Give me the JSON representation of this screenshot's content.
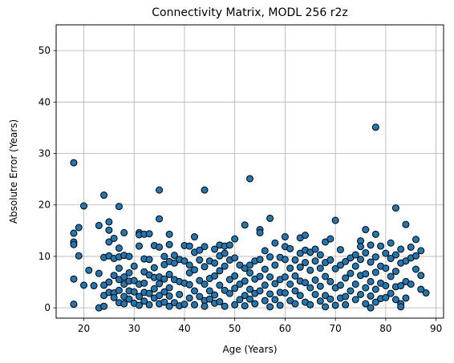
{
  "chart_data": {
    "type": "scatter",
    "title": "Connectivity Matrix, MODL 256 r2z",
    "xlabel": "Age (Years)",
    "ylabel": "Absolute Error (Years)",
    "xlim": [
      14.5,
      91.5
    ],
    "ylim": [
      -2,
      55
    ],
    "xticks": [
      20,
      30,
      40,
      50,
      60,
      70,
      80,
      90
    ],
    "yticks": [
      0,
      10,
      20,
      30,
      40,
      50
    ],
    "grid": true,
    "marker_color": "#1f77b4",
    "marker_edge_color": "#000000",
    "points": [
      [
        18,
        28.2
      ],
      [
        18,
        14.5
      ],
      [
        18,
        12.8
      ],
      [
        18,
        12.3
      ],
      [
        18,
        5.6
      ],
      [
        18,
        0.7
      ],
      [
        19,
        15.6
      ],
      [
        19,
        10.1
      ],
      [
        20,
        19.8
      ],
      [
        20,
        4.4
      ],
      [
        21,
        7.3
      ],
      [
        22,
        4.3
      ],
      [
        23,
        16.0
      ],
      [
        23,
        6.7
      ],
      [
        23,
        0.0
      ],
      [
        24,
        21.9
      ],
      [
        24,
        9.8
      ],
      [
        24,
        4.4
      ],
      [
        24,
        2.4
      ],
      [
        24,
        0.3
      ],
      [
        25,
        16.7
      ],
      [
        25,
        15.1
      ],
      [
        25,
        12.8
      ],
      [
        25,
        10.1
      ],
      [
        25,
        5.0
      ],
      [
        25,
        3.0
      ],
      [
        26,
        13.5
      ],
      [
        26,
        9.6
      ],
      [
        26,
        6.3
      ],
      [
        26,
        2.9
      ],
      [
        26,
        2.0
      ],
      [
        27,
        19.7
      ],
      [
        27,
        11.6
      ],
      [
        27,
        9.9
      ],
      [
        27,
        7.7
      ],
      [
        27,
        5.5
      ],
      [
        27,
        3.4
      ],
      [
        27,
        1.0
      ],
      [
        28,
        14.6
      ],
      [
        28,
        10.2
      ],
      [
        28,
        6.0
      ],
      [
        28,
        4.6
      ],
      [
        28,
        2.2
      ],
      [
        28,
        0.8
      ],
      [
        29,
        10.0
      ],
      [
        29,
        6.8
      ],
      [
        29,
        5.2
      ],
      [
        29,
        3.3
      ],
      [
        29,
        1.7
      ],
      [
        30,
        8.1
      ],
      [
        30,
        5.3
      ],
      [
        30,
        3.1
      ],
      [
        30,
        0.9
      ],
      [
        31,
        14.6
      ],
      [
        31,
        14.2
      ],
      [
        31,
        12.0
      ],
      [
        31,
        4.6
      ],
      [
        31,
        2.2
      ],
      [
        31,
        0.5
      ],
      [
        32,
        14.3
      ],
      [
        32,
        9.5
      ],
      [
        32,
        7.0
      ],
      [
        32,
        4.8
      ],
      [
        32,
        3.0
      ],
      [
        32,
        1.3
      ],
      [
        33,
        14.4
      ],
      [
        33,
        9.4
      ],
      [
        33,
        6.4
      ],
      [
        33,
        2.8
      ],
      [
        33,
        0.6
      ],
      [
        34,
        12.1
      ],
      [
        34,
        7.8
      ],
      [
        34,
        5.9
      ],
      [
        34,
        3.7
      ],
      [
        34,
        1.9
      ],
      [
        35,
        22.9
      ],
      [
        35,
        17.3
      ],
      [
        35,
        11.8
      ],
      [
        35,
        6.0
      ],
      [
        35,
        4.7
      ],
      [
        35,
        2.4
      ],
      [
        35,
        0.8
      ],
      [
        36,
        10.0
      ],
      [
        36,
        8.4
      ],
      [
        36,
        5.6
      ],
      [
        36,
        3.1
      ],
      [
        36,
        1.1
      ],
      [
        37,
        14.3
      ],
      [
        37,
        12.3
      ],
      [
        37,
        9.0
      ],
      [
        37,
        6.5
      ],
      [
        37,
        3.9
      ],
      [
        37,
        2.3
      ],
      [
        37,
        0.3
      ],
      [
        38,
        10.2
      ],
      [
        38,
        8.7
      ],
      [
        38,
        5.5
      ],
      [
        38,
        1.0
      ],
      [
        39,
        9.4
      ],
      [
        39,
        5.1
      ],
      [
        39,
        2.6
      ],
      [
        39,
        0.4
      ],
      [
        40,
        12.1
      ],
      [
        40,
        9.1
      ],
      [
        40,
        4.8
      ],
      [
        40,
        0.7
      ],
      [
        41,
        12.0
      ],
      [
        41,
        8.3
      ],
      [
        41,
        6.8
      ],
      [
        41,
        4.5
      ],
      [
        41,
        1.9
      ],
      [
        42,
        13.8
      ],
      [
        42,
        10.8
      ],
      [
        42,
        7.4
      ],
      [
        42,
        3.3
      ],
      [
        42,
        0.6
      ],
      [
        43,
        11.2
      ],
      [
        43,
        9.3
      ],
      [
        43,
        5.3
      ],
      [
        43,
        2.2
      ],
      [
        44,
        22.9
      ],
      [
        44,
        11.9
      ],
      [
        44,
        8.0
      ],
      [
        44,
        4.6
      ],
      [
        44,
        1.4
      ],
      [
        44,
        0.3
      ],
      [
        45,
        9.1
      ],
      [
        45,
        5.7
      ],
      [
        45,
        3.3
      ],
      [
        45,
        1.7
      ],
      [
        46,
        11.4
      ],
      [
        46,
        8.7
      ],
      [
        46,
        6.2
      ],
      [
        46,
        2.5
      ],
      [
        46,
        0.9
      ],
      [
        47,
        12.2
      ],
      [
        47,
        10.1
      ],
      [
        47,
        7.2
      ],
      [
        47,
        4.4
      ],
      [
        47,
        1.2
      ],
      [
        48,
        12.0
      ],
      [
        48,
        10.6
      ],
      [
        48,
        8.1
      ],
      [
        48,
        3.4
      ],
      [
        48,
        0.3
      ],
      [
        49,
        12.2
      ],
      [
        49,
        9.3
      ],
      [
        49,
        5.5
      ],
      [
        49,
        2.8
      ],
      [
        50,
        13.4
      ],
      [
        50,
        9.7
      ],
      [
        50,
        6.2
      ],
      [
        50,
        3.8
      ],
      [
        50,
        0.6
      ],
      [
        51,
        8.3
      ],
      [
        51,
        4.6
      ],
      [
        51,
        1.6
      ],
      [
        52,
        16.1
      ],
      [
        52,
        7.7
      ],
      [
        52,
        5.2
      ],
      [
        52,
        2.4
      ],
      [
        52,
        0.4
      ],
      [
        53,
        25.1
      ],
      [
        53,
        8.3
      ],
      [
        53,
        6.8
      ],
      [
        53,
        3.6
      ],
      [
        53,
        1.7
      ],
      [
        54,
        9.1
      ],
      [
        54,
        5.6
      ],
      [
        54,
        2.8
      ],
      [
        54,
        0.8
      ],
      [
        55,
        15.2
      ],
      [
        55,
        14.6
      ],
      [
        55,
        9.4
      ],
      [
        55,
        6.1
      ],
      [
        55,
        3.3
      ],
      [
        56,
        11.1
      ],
      [
        56,
        7.5
      ],
      [
        56,
        4.4
      ],
      [
        56,
        1.4
      ],
      [
        57,
        17.4
      ],
      [
        57,
        9.9
      ],
      [
        57,
        6.0
      ],
      [
        57,
        2.7
      ],
      [
        57,
        0.2
      ],
      [
        58,
        12.6
      ],
      [
        58,
        8.3
      ],
      [
        58,
        4.7
      ],
      [
        58,
        1.6
      ],
      [
        59,
        9.8
      ],
      [
        59,
        5.5
      ],
      [
        59,
        3.0
      ],
      [
        59,
        0.5
      ],
      [
        60,
        13.8
      ],
      [
        60,
        11.9
      ],
      [
        60,
        9.4
      ],
      [
        60,
        6.0
      ],
      [
        60,
        2.9
      ],
      [
        61,
        11.5
      ],
      [
        61,
        7.7
      ],
      [
        61,
        4.6
      ],
      [
        61,
        1.4
      ],
      [
        62,
        9.3
      ],
      [
        62,
        6.2
      ],
      [
        62,
        3.3
      ],
      [
        62,
        0.8
      ],
      [
        63,
        13.6
      ],
      [
        63,
        10.6
      ],
      [
        63,
        7.9
      ],
      [
        63,
        5.2
      ],
      [
        63,
        2.4
      ],
      [
        64,
        14.1
      ],
      [
        64,
        11.2
      ],
      [
        64,
        8.8
      ],
      [
        64,
        4.9
      ],
      [
        64,
        1.1
      ],
      [
        65,
        10.8
      ],
      [
        65,
        7.3
      ],
      [
        65,
        3.9
      ],
      [
        65,
        0.6
      ],
      [
        66,
        11.4
      ],
      [
        66,
        9.1
      ],
      [
        66,
        5.4
      ],
      [
        66,
        2.6
      ],
      [
        67,
        10.3
      ],
      [
        67,
        7.7
      ],
      [
        67,
        4.2
      ],
      [
        67,
        1.3
      ],
      [
        68,
        12.8
      ],
      [
        68,
        8.8
      ],
      [
        68,
        6.1
      ],
      [
        68,
        2.4
      ],
      [
        68,
        0.2
      ],
      [
        69,
        13.4
      ],
      [
        69,
        9.3
      ],
      [
        69,
        5.1
      ],
      [
        69,
        1.7
      ],
      [
        70,
        17.0
      ],
      [
        70,
        7.6
      ],
      [
        70,
        3.9
      ],
      [
        70,
        0.5
      ],
      [
        71,
        11.3
      ],
      [
        71,
        8.3
      ],
      [
        71,
        4.4
      ],
      [
        71,
        1.9
      ],
      [
        72,
        9.0
      ],
      [
        72,
        5.8
      ],
      [
        72,
        2.2
      ],
      [
        72,
        0.6
      ],
      [
        73,
        9.7
      ],
      [
        73,
        6.7
      ],
      [
        73,
        3.3
      ],
      [
        74,
        10.3
      ],
      [
        74,
        8.1
      ],
      [
        74,
        4.6
      ],
      [
        74,
        1.6
      ],
      [
        75,
        13.0
      ],
      [
        75,
        11.9
      ],
      [
        75,
        9.4
      ],
      [
        75,
        6.3
      ],
      [
        75,
        2.6
      ],
      [
        76,
        15.2
      ],
      [
        76,
        10.7
      ],
      [
        76,
        6.6
      ],
      [
        76,
        3.9
      ],
      [
        76,
        0.8
      ],
      [
        77,
        12.2
      ],
      [
        77,
        8.9
      ],
      [
        77,
        5.1
      ],
      [
        77,
        2.3
      ],
      [
        77,
        0.0
      ],
      [
        78,
        35.1
      ],
      [
        78,
        14.3
      ],
      [
        78,
        9.9
      ],
      [
        78,
        6.9
      ],
      [
        78,
        3.6
      ],
      [
        78,
        1.1
      ],
      [
        79,
        12.0
      ],
      [
        79,
        8.1
      ],
      [
        79,
        4.8
      ],
      [
        79,
        1.8
      ],
      [
        80,
        10.6
      ],
      [
        80,
        7.7
      ],
      [
        80,
        4.3
      ],
      [
        80,
        2.0
      ],
      [
        81,
        12.6
      ],
      [
        81,
        9.6
      ],
      [
        81,
        6.1
      ],
      [
        81,
        2.8
      ],
      [
        82,
        19.4
      ],
      [
        82,
        10.3
      ],
      [
        82,
        7.1
      ],
      [
        82,
        4.1
      ],
      [
        82,
        1.6
      ],
      [
        83,
        11.4
      ],
      [
        83,
        8.7
      ],
      [
        83,
        4.3
      ],
      [
        83,
        0.8
      ],
      [
        83,
        0.2
      ],
      [
        84,
        16.2
      ],
      [
        84,
        9.1
      ],
      [
        84,
        5.1
      ],
      [
        84,
        1.9
      ],
      [
        85,
        11.8
      ],
      [
        85,
        9.7
      ],
      [
        85,
        4.6
      ],
      [
        86,
        13.3
      ],
      [
        86,
        10.1
      ],
      [
        86,
        7.5
      ],
      [
        87,
        11.1
      ],
      [
        87,
        6.3
      ],
      [
        87,
        3.6
      ],
      [
        88,
        2.9
      ]
    ]
  }
}
